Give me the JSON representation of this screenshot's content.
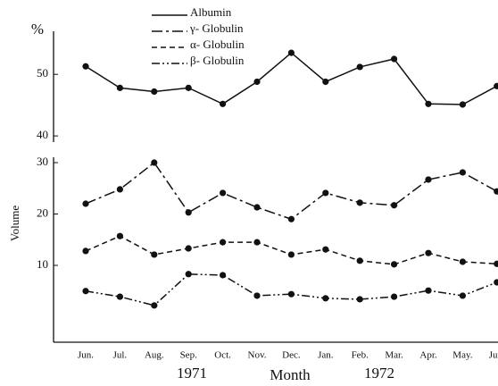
{
  "chart_data": {
    "type": "line",
    "categories": [
      "Jun.",
      "Jul.",
      "Aug.",
      "Sep.",
      "Oct.",
      "Nov.",
      "Dec.",
      "Jan.",
      "Feb.",
      "Mar.",
      "Apr.",
      "May.",
      "Jun."
    ],
    "x_label": "Month",
    "year_labels": [
      "1971",
      "1972"
    ],
    "legend": [
      "Albumin",
      "γ- Globulin",
      "α- Globulin",
      "β- Globulin"
    ],
    "color": "#111111",
    "panels": [
      {
        "y_label": "%",
        "ylim": [
          39,
          57
        ],
        "yticks": [
          40,
          50
        ],
        "series": [
          {
            "name": "Albumin",
            "dash": "solid",
            "values": [
              51.3,
              47.8,
              47.2,
              47.8,
              45.2,
              48.8,
              53.5,
              48.8,
              51.2,
              52.5,
              45.2,
              45.1,
              48.1
            ]
          }
        ]
      },
      {
        "y_label": "Volume",
        "ylim": [
          -5,
          31
        ],
        "yticks": [
          10,
          20,
          30
        ],
        "series": [
          {
            "name": "γ- Globulin",
            "dash": "dashdot",
            "values": [
              22.0,
              24.8,
              30.0,
              20.3,
              24.1,
              21.3,
              19.0,
              24.1,
              22.2,
              21.7,
              26.7,
              28.1,
              24.4
            ]
          },
          {
            "name": "α- Globulin",
            "dash": "dashed",
            "values": [
              12.8,
              15.7,
              12.1,
              13.3,
              14.5,
              14.5,
              12.1,
              13.1,
              10.9,
              10.2,
              12.4,
              10.7,
              10.3
            ]
          },
          {
            "name": "β- Globulin",
            "dash": "dashdotdot",
            "values": [
              5.0,
              3.9,
              2.2,
              8.3,
              8.1,
              4.1,
              4.4,
              3.6,
              3.4,
              3.9,
              5.1,
              4.1,
              6.7
            ]
          }
        ]
      }
    ]
  }
}
